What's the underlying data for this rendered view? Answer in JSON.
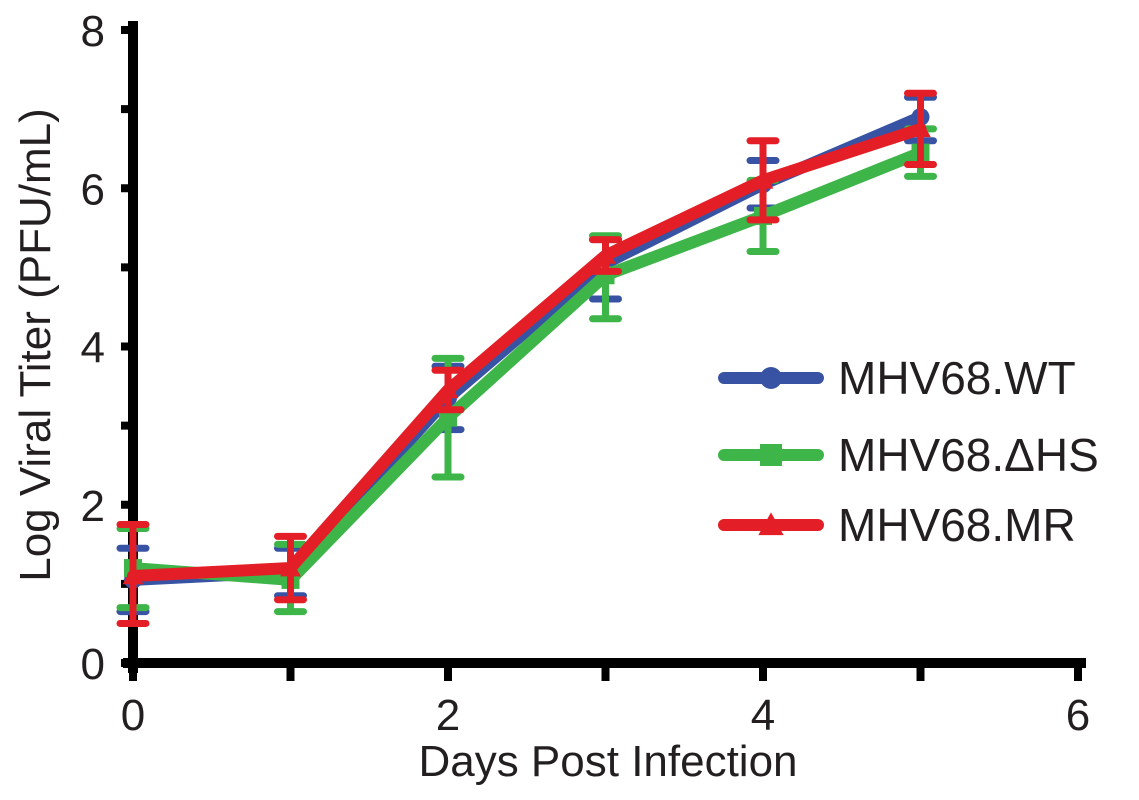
{
  "chart_data": {
    "type": "line",
    "title": "",
    "xlabel": "Days Post Infection",
    "ylabel": "Log Viral Titer (PFU/mL)",
    "xlim": [
      0,
      6
    ],
    "ylim": [
      0,
      8
    ],
    "x_ticks": [
      0,
      2,
      4,
      6
    ],
    "y_ticks": [
      0,
      2,
      4,
      6,
      8
    ],
    "grid": false,
    "legend_position": "right",
    "x": [
      0,
      1,
      2,
      3,
      4,
      5
    ],
    "series": [
      {
        "name": "MHV68.WT",
        "color": "#3953a4",
        "marker": "circle",
        "values": [
          1.05,
          1.15,
          3.35,
          5.05,
          6.05,
          6.9
        ],
        "err_low": [
          0.65,
          0.85,
          2.95,
          4.6,
          5.75,
          6.6
        ],
        "err_high": [
          1.45,
          1.45,
          3.75,
          5.35,
          6.35,
          7.15
        ]
      },
      {
        "name": "MHV68.ΔHS",
        "color": "#3db549",
        "marker": "square",
        "values": [
          1.2,
          1.05,
          3.1,
          4.9,
          5.65,
          6.45
        ],
        "err_low": [
          0.7,
          0.65,
          2.35,
          4.35,
          5.2,
          6.15
        ],
        "err_high": [
          1.7,
          1.5,
          3.85,
          5.4,
          6.1,
          6.75
        ]
      },
      {
        "name": "MHV68.MR",
        "color": "#e31e26",
        "marker": "triangle",
        "values": [
          1.1,
          1.2,
          3.45,
          5.15,
          6.1,
          6.75
        ],
        "err_low": [
          0.5,
          0.8,
          3.2,
          4.95,
          5.6,
          6.3
        ],
        "err_high": [
          1.75,
          1.6,
          3.7,
          5.35,
          6.6,
          7.2
        ]
      }
    ]
  }
}
